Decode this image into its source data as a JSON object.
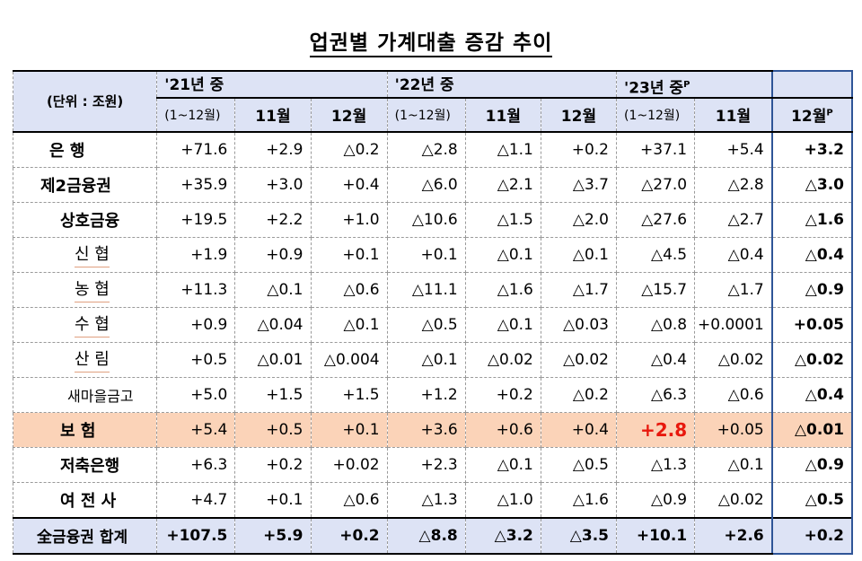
{
  "title": "업권별 가계대출 증감 추이",
  "unit_label": "(단위 : 조원)",
  "headers": {
    "y21": "'21년 중",
    "y21_range": "(1~12월)",
    "y22": "'22년 중",
    "y22_range": "(1~12월)",
    "y23": "'23년 중",
    "y23_sup": "P",
    "y23_range": "(1~12월)",
    "m11": "11월",
    "m12": "12월",
    "m12p_sup": "P"
  },
  "rows": [
    {
      "label": "은       행",
      "values": [
        "+71.6",
        "+2.9",
        "△0.2",
        "△2.8",
        "△1.1",
        "+0.2",
        "+37.1",
        "+5.4",
        "+3.2"
      ]
    },
    {
      "label": "제2금융권",
      "values": [
        "+35.9",
        "+3.0",
        "+0.4",
        "△6.0",
        "△2.1",
        "△3.7",
        "△27.0",
        "△2.8",
        "△3.0"
      ]
    },
    {
      "label": "상호금융",
      "values": [
        "+19.5",
        "+2.2",
        "+1.0",
        "△10.6",
        "△1.5",
        "△2.0",
        "△27.6",
        "△2.7",
        "△1.6"
      ]
    },
    {
      "label": "신     협",
      "values": [
        "+1.9",
        "+0.9",
        "+0.1",
        "+0.1",
        "△0.1",
        "△0.1",
        "△4.5",
        "△0.4",
        "△0.4"
      ]
    },
    {
      "label": "농     협",
      "values": [
        "+11.3",
        "△0.1",
        "△0.6",
        "△11.1",
        "△1.6",
        "△1.7",
        "△15.7",
        "△1.7",
        "△0.9"
      ]
    },
    {
      "label": "수     협",
      "values": [
        "+0.9",
        "△0.04",
        "△0.1",
        "△0.5",
        "△0.1",
        "△0.03",
        "△0.8",
        "+0.0001",
        "+0.05"
      ]
    },
    {
      "label": "산     림",
      "values": [
        "+0.5",
        "△0.01",
        "△0.004",
        "△0.1",
        "△0.02",
        "△0.02",
        "△0.4",
        "△0.02",
        "△0.02"
      ]
    },
    {
      "label": "새마을금고",
      "values": [
        "+5.0",
        "+1.5",
        "+1.5",
        "+1.2",
        "+0.2",
        "△0.2",
        "△6.3",
        "△0.6",
        "△0.4"
      ]
    },
    {
      "label": "보     험",
      "values": [
        "+5.4",
        "+0.5",
        "+0.1",
        "+3.6",
        "+0.6",
        "+0.4",
        "+2.8",
        "+0.05",
        "△0.01"
      ]
    },
    {
      "label": "저축은행",
      "values": [
        "+6.3",
        "+0.2",
        "+0.02",
        "+2.3",
        "△0.1",
        "△0.5",
        "△1.3",
        "△0.1",
        "△0.9"
      ]
    },
    {
      "label": "여 전 사",
      "values": [
        "+4.7",
        "+0.1",
        "△0.6",
        "△1.3",
        "△1.0",
        "△1.6",
        "△0.9",
        "△0.02",
        "△0.5"
      ]
    }
  ],
  "total": {
    "label": "全금융권 합계",
    "values": [
      "+107.5",
      "+5.9",
      "+0.2",
      "△8.8",
      "△3.2",
      "△3.5",
      "+10.1",
      "+2.6",
      "+0.2"
    ]
  },
  "colors": {
    "header_bg": "#dde3f5",
    "insurance_bg": "#fbd3b8",
    "highlight_red": "#e8180d",
    "last_col_border": "#2f5597"
  }
}
